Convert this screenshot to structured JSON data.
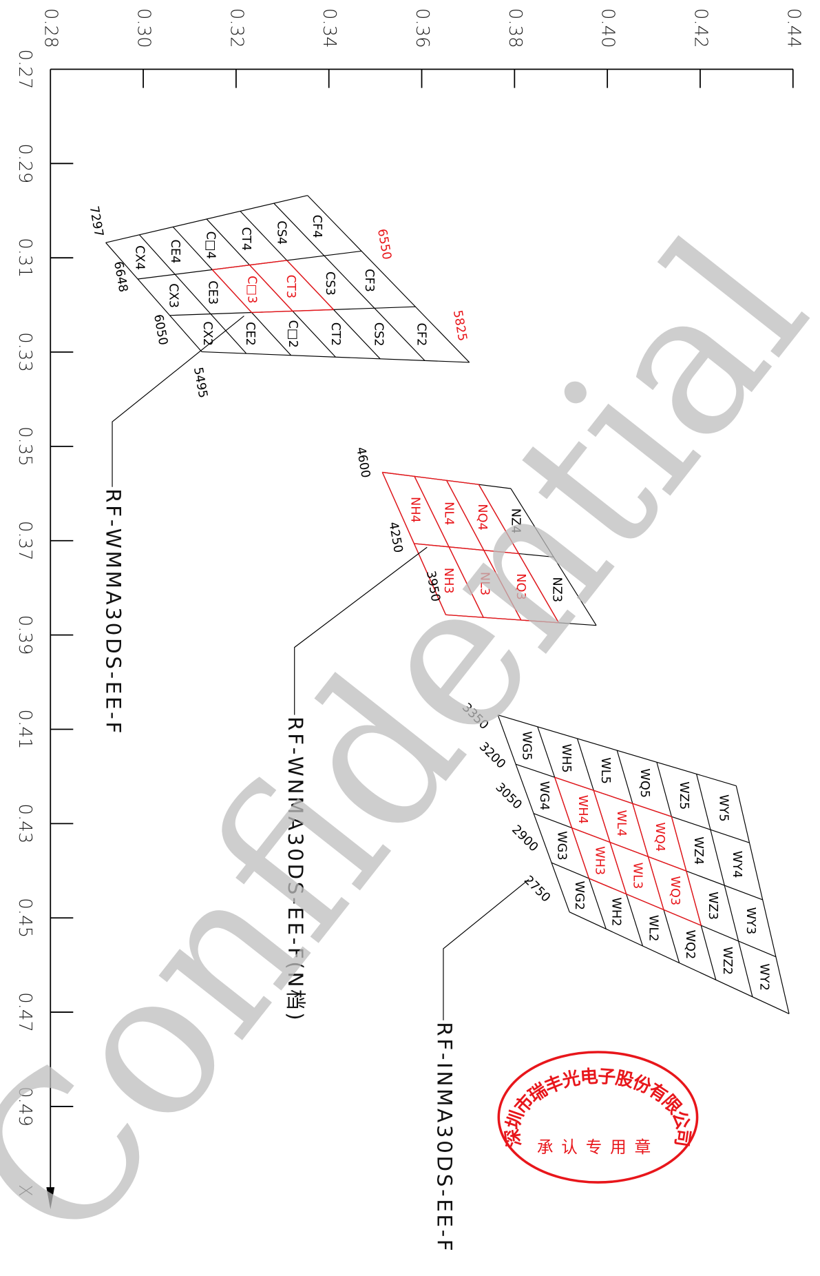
{
  "axes": {
    "x": {
      "label": "X",
      "ticks": [
        {
          "value": 0.27,
          "label": "0.27"
        },
        {
          "value": 0.29,
          "label": "0.29"
        },
        {
          "value": 0.31,
          "label": "0.31"
        },
        {
          "value": 0.33,
          "label": "0.33"
        },
        {
          "value": 0.35,
          "label": "0.35"
        },
        {
          "value": 0.37,
          "label": "0.37"
        },
        {
          "value": 0.39,
          "label": "0.39"
        },
        {
          "value": 0.41,
          "label": "0.41"
        },
        {
          "value": 0.43,
          "label": "0.43"
        },
        {
          "value": 0.45,
          "label": "0.45"
        },
        {
          "value": 0.47,
          "label": "0.47"
        },
        {
          "value": 0.49,
          "label": "0.49"
        }
      ]
    },
    "y": {
      "ticks": [
        {
          "value": 0.28,
          "label": "0.28"
        },
        {
          "value": 0.3,
          "label": "0.30"
        },
        {
          "value": 0.32,
          "label": "0.32"
        },
        {
          "value": 0.34,
          "label": "0.34"
        },
        {
          "value": 0.36,
          "label": "0.36"
        },
        {
          "value": 0.38,
          "label": "0.38"
        },
        {
          "value": 0.4,
          "label": "0.40"
        },
        {
          "value": 0.42,
          "label": "0.42"
        },
        {
          "value": 0.44,
          "label": "0.44"
        }
      ]
    }
  },
  "groups": [
    {
      "model": "RF-WMMA30DS-EE-F",
      "cells": [
        [
          "CX4",
          "CE4",
          "C□4",
          "CT4",
          "CS4",
          "CF4"
        ],
        [
          "CX3",
          "CE3",
          "C□3",
          "CT3",
          "CS3",
          "CF3"
        ],
        [
          "CX2",
          "CE2",
          "C□2",
          "CT2",
          "CS2",
          "CF2"
        ]
      ],
      "cct": [
        7297,
        6648,
        6050,
        5495
      ],
      "cct_red": [
        6550,
        5825
      ]
    },
    {
      "model": "RF-WNMA30DS-EE-F(N档)",
      "cells": [
        [
          "NH4",
          "NL4",
          "NQ4",
          "NZ4"
        ],
        [
          "NH3",
          "NL3",
          "NQ3",
          "NZ3"
        ]
      ],
      "cct": [
        4600,
        4250,
        3950
      ],
      "cct_red": []
    },
    {
      "model": "RF-INMA30DS-EE-F",
      "cells": [
        [
          "WG5",
          "WH5",
          "WL5",
          "WQ5",
          "WZ5",
          "WY5"
        ],
        [
          "WG4",
          "WH4",
          "WL4",
          "WQ4",
          "WZ4",
          "WY4"
        ],
        [
          "WG3",
          "WH3",
          "WL3",
          "WQ3",
          "WZ3",
          "WY3"
        ],
        [
          "WG2",
          "WH2",
          "WL2",
          "WQ2",
          "WZ2",
          "WY2"
        ]
      ],
      "cct": [
        3350,
        3200,
        3050,
        2900,
        2750
      ],
      "cct_red": []
    }
  ],
  "stamp": {
    "company": "深圳市瑞丰光电子股份有限公司",
    "purpose": "承认专用章"
  },
  "watermark": "Confidential"
}
